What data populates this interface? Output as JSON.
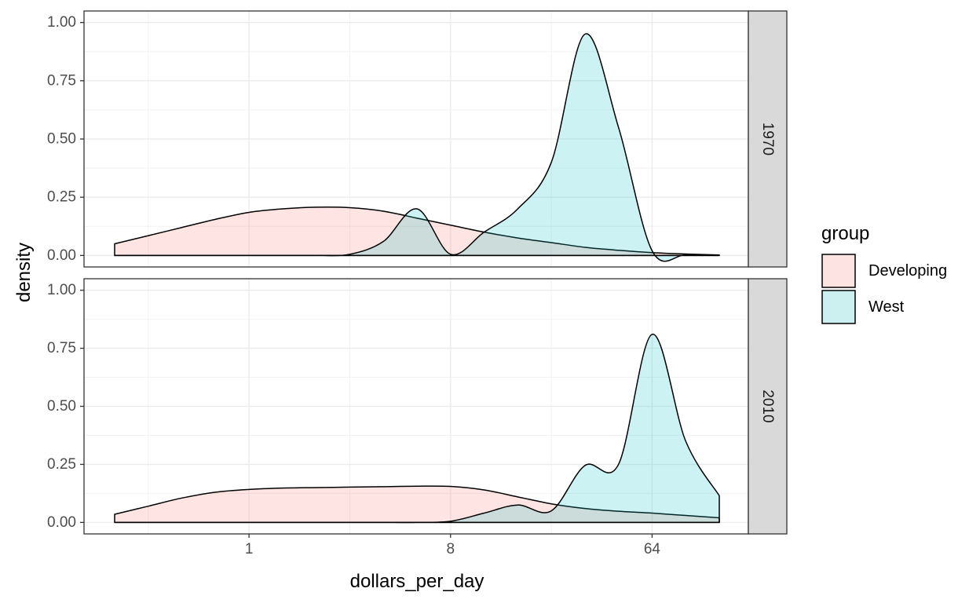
{
  "chart_data": {
    "type": "area",
    "subtype": "density",
    "facet_by": "year",
    "x_scale": "log2",
    "x": [
      0.25,
      0.354,
      0.5,
      0.707,
      1,
      1.414,
      2,
      2.828,
      4,
      5.657,
      8,
      11.31,
      16,
      22.63,
      32,
      45.25,
      64,
      90.51,
      128
    ],
    "xlim": [
      0.25,
      128
    ],
    "xticks": [
      1,
      8,
      64
    ],
    "xtick_labels": [
      "1",
      "8",
      "64"
    ],
    "ylim": [
      0,
      1
    ],
    "yticks": [
      0,
      0.25,
      0.5,
      0.75,
      1
    ],
    "ytick_labels": [
      "0.00",
      "0.25",
      "0.50",
      "0.75",
      "1.00"
    ],
    "xlabel": "dollars_per_day",
    "ylabel": "density",
    "grid": true,
    "legend": {
      "title": "group",
      "position": "right",
      "entries": [
        {
          "name": "Developing",
          "color": "#f8766d"
        },
        {
          "name": "West",
          "color": "#00bfc4"
        }
      ]
    },
    "panels": [
      {
        "label": "1970",
        "series": [
          {
            "name": "Developing",
            "values": [
              0.05,
              0.085,
              0.12,
              0.155,
              0.185,
              0.2,
              0.207,
              0.205,
              0.19,
              0.16,
              0.13,
              0.1,
              0.075,
              0.055,
              0.035,
              0.022,
              0.012,
              0.006,
              0.002
            ]
          },
          {
            "name": "West",
            "values": [
              0,
              0,
              0,
              0,
              0,
              0,
              0,
              0.005,
              0.06,
              0.2,
              0.005,
              0.1,
              0.2,
              0.4,
              0.95,
              0.55,
              0.02,
              0.002,
              0
            ]
          }
        ]
      },
      {
        "label": "2010",
        "series": [
          {
            "name": "Developing",
            "values": [
              0.035,
              0.07,
              0.105,
              0.13,
              0.142,
              0.148,
              0.15,
              0.152,
              0.154,
              0.156,
              0.155,
              0.14,
              0.11,
              0.08,
              0.06,
              0.048,
              0.04,
              0.03,
              0.02
            ]
          },
          {
            "name": "West",
            "values": [
              0,
              0,
              0,
              0,
              0,
              0,
              0,
              0,
              0,
              0,
              0.005,
              0.04,
              0.075,
              0.05,
              0.245,
              0.25,
              0.81,
              0.35,
              0.115
            ]
          }
        ]
      }
    ]
  }
}
